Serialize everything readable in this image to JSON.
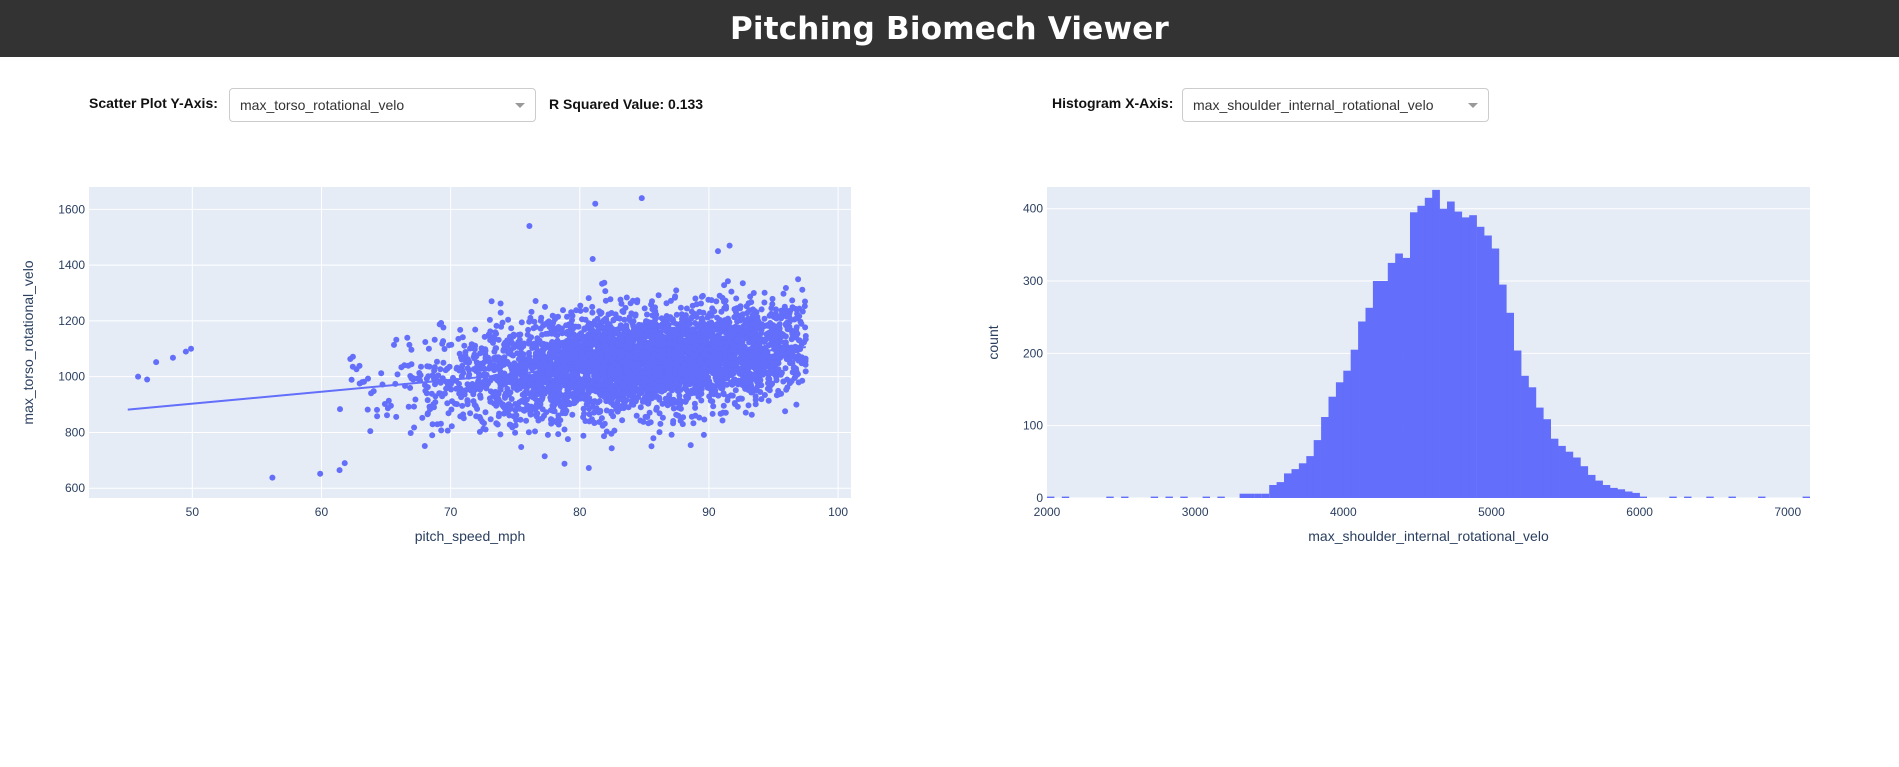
{
  "header": {
    "title": "Pitching Biomech Viewer"
  },
  "controls": {
    "scatter_label": "Scatter Plot Y-Axis:",
    "scatter_value": "max_torso_rotational_velo",
    "rsq_text": "R Squared Value: 0.133",
    "hist_label": "Histogram X-Axis:",
    "hist_value": "max_shoulder_internal_rotational_velo"
  },
  "colors": {
    "marker": "#636efa",
    "plot_bg": "#e5ecf6",
    "header_bg": "#333333"
  },
  "chart_data": [
    {
      "type": "scatter",
      "xlabel": "pitch_speed_mph",
      "ylabel": "max_torso_rotational_velo",
      "xlim": [
        42,
        101
      ],
      "ylim": [
        565,
        1680
      ],
      "xticks": [
        "50",
        "60",
        "70",
        "80",
        "90",
        "100"
      ],
      "yticks": [
        "600",
        "800",
        "1000",
        "1200",
        "1400",
        "1600"
      ],
      "trendline": {
        "x": [
          45,
          97.5
        ],
        "y": [
          882,
          1106
        ]
      },
      "outliers": [
        [
          84.8,
          1640
        ],
        [
          81.2,
          1620
        ],
        [
          76.1,
          1540
        ],
        [
          81,
          1422
        ],
        [
          91.6,
          1470
        ],
        [
          90.7,
          1450
        ],
        [
          56.2,
          638
        ],
        [
          59.9,
          652
        ],
        [
          61.8,
          690
        ],
        [
          61.4,
          665
        ],
        [
          45.8,
          1000
        ],
        [
          46.5,
          990
        ],
        [
          49.9,
          1100
        ],
        [
          49.5,
          1090
        ],
        [
          47.2,
          1052
        ],
        [
          48.5,
          1068
        ]
      ],
      "point_count_approx": 4000
    },
    {
      "type": "bar",
      "xlabel": "max_shoulder_internal_rotational_velo",
      "ylabel": "count",
      "xlim": [
        2000,
        7150
      ],
      "ylim": [
        0,
        430
      ],
      "xticks": [
        "2000",
        "3000",
        "4000",
        "5000",
        "6000",
        "7000"
      ],
      "yticks": [
        "0",
        "100",
        "200",
        "300",
        "400"
      ],
      "bin_start": 3500,
      "bin_width": 50,
      "values": [
        18,
        22,
        34,
        40,
        48,
        58,
        80,
        112,
        140,
        160,
        176,
        205,
        244,
        263,
        300,
        300,
        325,
        338,
        332,
        395,
        404,
        415,
        426,
        400,
        410,
        396,
        388,
        391,
        375,
        363,
        345,
        295,
        256,
        204,
        169,
        153,
        125,
        109,
        82,
        72,
        64,
        56,
        44,
        32,
        24,
        18,
        14,
        12,
        9,
        7
      ]
    }
  ]
}
